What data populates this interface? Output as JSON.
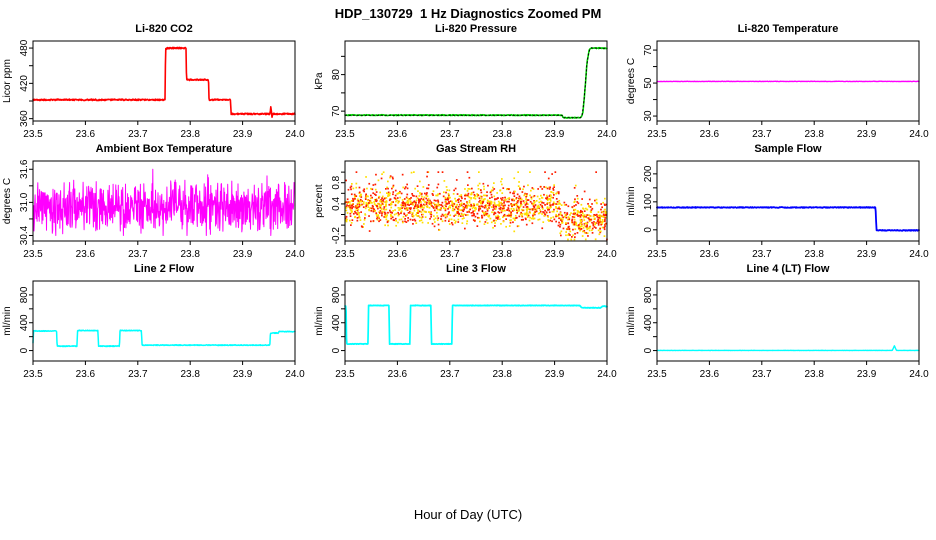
{
  "header": {
    "title": "HDP_130729  1 Hz Diagnostics Zoomed PM"
  },
  "footer": {
    "xlabel": "Hour of Day (UTC)"
  },
  "chart_data": [
    {
      "type": "line",
      "title": "Li-820 CO2",
      "ylabel": "Licor ppm",
      "xlim": [
        23.5,
        24.0
      ],
      "xticks": [
        23.5,
        23.6,
        23.7,
        23.8,
        23.9,
        24.0
      ],
      "ylim": [
        356,
        492
      ],
      "yticks": [
        360,
        390,
        420,
        450,
        480
      ],
      "ytick_labels": [
        "360",
        "",
        "420",
        "",
        "480"
      ],
      "series": [
        {
          "mode": "line",
          "color": "#ff0000",
          "width": 1.6,
          "jitter": 1.2,
          "n": 650,
          "points": [
            [
              23.5,
              392
            ],
            [
              23.752,
              392
            ],
            [
              23.753,
              478
            ],
            [
              23.757,
              480
            ],
            [
              23.792,
              480
            ],
            [
              23.793,
              426
            ],
            [
              23.835,
              426
            ],
            [
              23.836,
              392
            ],
            [
              23.877,
              392
            ],
            [
              23.878,
              368
            ],
            [
              23.952,
              368
            ],
            [
              23.954,
              381
            ],
            [
              23.956,
              362
            ],
            [
              23.958,
              368
            ],
            [
              24.0,
              368
            ]
          ]
        }
      ]
    },
    {
      "type": "line",
      "title": "Li-820 Pressure",
      "ylabel": "kPa",
      "xlim": [
        23.5,
        24.0
      ],
      "xticks": [
        23.5,
        23.6,
        23.7,
        23.8,
        23.9,
        24.0
      ],
      "ylim": [
        67.3,
        89.2
      ],
      "yticks": [
        70,
        75,
        80,
        85
      ],
      "ytick_labels": [
        "70",
        "",
        "80",
        ""
      ],
      "series": [
        {
          "mode": "line",
          "color": "#00dd00",
          "width": 1.6,
          "jitter": 0.12,
          "n": 600,
          "points": [
            [
              23.5,
              68.9
            ],
            [
              23.914,
              68.9
            ],
            [
              23.916,
              68.2
            ],
            [
              23.95,
              68.2
            ],
            [
              23.954,
              69.5
            ],
            [
              23.958,
              76
            ],
            [
              23.962,
              83.5
            ],
            [
              23.966,
              86.8
            ],
            [
              23.97,
              87.3
            ],
            [
              24.0,
              87.2
            ]
          ]
        },
        {
          "mode": "line",
          "color": "#000000",
          "width": 1,
          "jitter": 0,
          "n": 170,
          "dash": "1.5,2.5",
          "points": [
            [
              23.5,
              68.9
            ],
            [
              23.914,
              68.9
            ],
            [
              23.916,
              68.2
            ],
            [
              23.95,
              68.2
            ],
            [
              23.954,
              69.5
            ],
            [
              23.958,
              76
            ],
            [
              23.962,
              83.5
            ],
            [
              23.966,
              86.8
            ],
            [
              23.97,
              87.3
            ],
            [
              24.0,
              87.2
            ]
          ]
        }
      ]
    },
    {
      "type": "line",
      "title": "Li-820 Temperature",
      "ylabel": "degrees C",
      "xlim": [
        23.5,
        24.0
      ],
      "xticks": [
        23.5,
        23.6,
        23.7,
        23.8,
        23.9,
        24.0
      ],
      "ylim": [
        27,
        75.5
      ],
      "yticks": [
        30,
        40,
        50,
        60,
        70
      ],
      "ytick_labels": [
        "30",
        "",
        "50",
        "",
        "70"
      ],
      "series": [
        {
          "mode": "line",
          "color": "#ff00ff",
          "width": 1.4,
          "jitter": 0.12,
          "n": 400,
          "points": [
            [
              23.5,
              51
            ],
            [
              24.0,
              51
            ]
          ]
        }
      ]
    },
    {
      "type": "line",
      "title": "Ambient Box Temperature",
      "ylabel": "degrees C",
      "xlim": [
        23.5,
        24.0
      ],
      "xticks": [
        23.5,
        23.6,
        23.7,
        23.8,
        23.9,
        24.0
      ],
      "ylim": [
        30.3,
        31.75
      ],
      "yticks": [
        30.4,
        30.7,
        31.0,
        31.3,
        31.6
      ],
      "ytick_labels": [
        "30.4",
        "",
        "31.0",
        "",
        "31.6"
      ],
      "series": [
        {
          "mode": "noise",
          "color": "#ff00ff",
          "width": 1,
          "n": 760,
          "mean": [
            [
              23.5,
              30.92
            ]
          ],
          "spread": 0.55,
          "spike_p": 0.06,
          "spike_amp": 0.55,
          "min": 30.4,
          "max": 31.6
        }
      ]
    },
    {
      "type": "scatter",
      "title": "Gas Stream RH",
      "ylabel": "percent",
      "xlim": [
        23.5,
        24.0
      ],
      "xticks": [
        23.5,
        23.6,
        23.7,
        23.8,
        23.9,
        24.0
      ],
      "ylim": [
        -0.3,
        1.21
      ],
      "yticks": [
        -0.2,
        0.0,
        0.2,
        0.4,
        0.6,
        0.8,
        1.0
      ],
      "ytick_labels": [
        "-0.2",
        "",
        "",
        "0.4",
        "",
        "0.8",
        ""
      ],
      "series": [
        {
          "mode": "dots",
          "colors": [
            "#ff1e00",
            "#ffdf00"
          ],
          "size": 1.7,
          "n": 1700,
          "mean": [
            [
              23.5,
              0.36
            ],
            [
              23.91,
              0.12
            ]
          ],
          "spread": 0.42,
          "spike_p": 0.1,
          "spike_amp": 0.5,
          "min": -0.27,
          "max": 1.0
        }
      ]
    },
    {
      "type": "line",
      "title": "Sample Flow",
      "ylabel": "ml/min",
      "xlim": [
        23.5,
        24.0
      ],
      "xticks": [
        23.5,
        23.6,
        23.7,
        23.8,
        23.9,
        24.0
      ],
      "ylim": [
        -40,
        246
      ],
      "yticks": [
        0,
        50,
        100,
        150,
        200
      ],
      "ytick_labels": [
        "0",
        "",
        "100",
        "",
        "200"
      ],
      "series": [
        {
          "mode": "line",
          "color": "#0000ff",
          "width": 1.8,
          "jitter": 1.4,
          "n": 600,
          "points": [
            [
              23.5,
              80
            ],
            [
              23.917,
              80
            ],
            [
              23.919,
              -2
            ],
            [
              24.0,
              -2
            ]
          ]
        }
      ]
    },
    {
      "type": "line",
      "title": "Line 2 Flow",
      "ylabel": "ml/min",
      "xlim": [
        23.5,
        24.0
      ],
      "xticks": [
        23.5,
        23.6,
        23.7,
        23.8,
        23.9,
        24.0
      ],
      "ylim": [
        -150,
        1000
      ],
      "yticks": [
        0,
        200,
        400,
        600,
        800
      ],
      "ytick_labels": [
        "0",
        "",
        "400",
        "",
        "800"
      ],
      "series": [
        {
          "mode": "line",
          "color": "#00ffff",
          "width": 1.5,
          "jitter": 5,
          "n": 700,
          "points": [
            [
              23.5,
              110
            ],
            [
              23.501,
              282
            ],
            [
              23.545,
              282
            ],
            [
              23.546,
              64
            ],
            [
              23.584,
              64
            ],
            [
              23.585,
              288
            ],
            [
              23.624,
              288
            ],
            [
              23.625,
              64
            ],
            [
              23.665,
              64
            ],
            [
              23.666,
              288
            ],
            [
              23.707,
              288
            ],
            [
              23.708,
              78
            ],
            [
              23.952,
              78
            ],
            [
              23.953,
              252
            ],
            [
              23.968,
              252
            ],
            [
              23.969,
              272
            ],
            [
              24.0,
              272
            ]
          ]
        }
      ]
    },
    {
      "type": "line",
      "title": "Line 3 Flow",
      "ylabel": "ml/min",
      "xlim": [
        23.5,
        24.0
      ],
      "xticks": [
        23.5,
        23.6,
        23.7,
        23.8,
        23.9,
        24.0
      ],
      "ylim": [
        -150,
        1000
      ],
      "yticks": [
        0,
        200,
        400,
        600,
        800
      ],
      "ytick_labels": [
        "0",
        "",
        "400",
        "",
        "800"
      ],
      "series": [
        {
          "mode": "line",
          "color": "#00ffff",
          "width": 1.7,
          "jitter": 4,
          "n": 700,
          "points": [
            [
              23.5,
              640
            ],
            [
              23.502,
              640
            ],
            [
              23.503,
              95
            ],
            [
              23.544,
              95
            ],
            [
              23.545,
              648
            ],
            [
              23.584,
              648
            ],
            [
              23.585,
              95
            ],
            [
              23.624,
              95
            ],
            [
              23.625,
              648
            ],
            [
              23.664,
              648
            ],
            [
              23.665,
              95
            ],
            [
              23.704,
              95
            ],
            [
              23.705,
              648
            ],
            [
              23.948,
              648
            ],
            [
              23.952,
              615
            ],
            [
              23.988,
              615
            ],
            [
              23.992,
              640
            ],
            [
              24.0,
              632
            ]
          ]
        }
      ]
    },
    {
      "type": "line",
      "title": "Line 4 (LT) Flow",
      "ylabel": "ml/min",
      "xlim": [
        23.5,
        24.0
      ],
      "xticks": [
        23.5,
        23.6,
        23.7,
        23.8,
        23.9,
        24.0
      ],
      "ylim": [
        -150,
        1000
      ],
      "yticks": [
        0,
        200,
        400,
        600,
        800
      ],
      "ytick_labels": [
        "0",
        "",
        "400",
        "",
        "800"
      ],
      "series": [
        {
          "mode": "line",
          "color": "#00ffff",
          "width": 1.4,
          "jitter": 1.5,
          "n": 650,
          "points": [
            [
              23.5,
              2
            ],
            [
              23.949,
              2
            ],
            [
              23.953,
              68
            ],
            [
              23.957,
              2
            ],
            [
              24.0,
              2
            ]
          ]
        }
      ]
    }
  ]
}
